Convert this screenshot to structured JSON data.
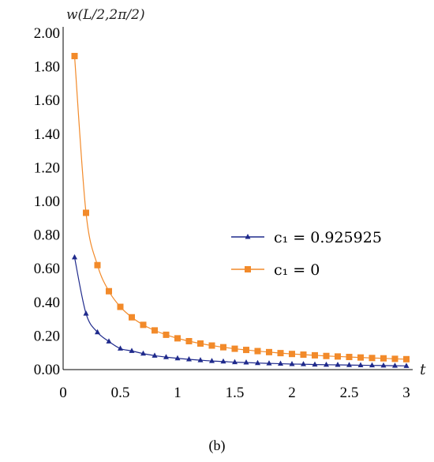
{
  "chart_data": {
    "type": "line",
    "ylabel": "w(L/2,2π/2)",
    "xlabel": "t",
    "xlim": [
      0,
      3
    ],
    "ylim": [
      0,
      2
    ],
    "xticks": [
      "0",
      "0.5",
      "1",
      "1.5",
      "2",
      "2.5",
      "3"
    ],
    "yticks": [
      "0.00",
      "0.20",
      "0.40",
      "0.60",
      "0.80",
      "1.00",
      "1.20",
      "1.40",
      "1.60",
      "1.80",
      "2.00"
    ],
    "grid": false,
    "legend_position": "right-middle",
    "caption": "(b)",
    "series": [
      {
        "name": "c₁ = 0.925925",
        "color": "#1f2a8c",
        "marker": "triangle",
        "x": [
          0.1,
          0.2,
          0.3,
          0.4,
          0.5,
          0.6,
          0.7,
          0.8,
          0.9,
          1.0,
          1.1,
          1.2,
          1.3,
          1.4,
          1.5,
          1.6,
          1.7,
          1.8,
          1.9,
          2.0,
          2.1,
          2.2,
          2.3,
          2.4,
          2.5,
          2.6,
          2.7,
          2.8,
          2.9,
          3.0
        ],
        "values": [
          0.667,
          0.333,
          0.222,
          0.167,
          0.125,
          0.111,
          0.095,
          0.083,
          0.074,
          0.067,
          0.061,
          0.056,
          0.051,
          0.048,
          0.044,
          0.042,
          0.039,
          0.037,
          0.035,
          0.033,
          0.032,
          0.03,
          0.029,
          0.028,
          0.027,
          0.026,
          0.025,
          0.024,
          0.023,
          0.022
        ]
      },
      {
        "name": "c₁ = 0",
        "color": "#f28a2a",
        "marker": "square",
        "x": [
          0.1,
          0.2,
          0.3,
          0.4,
          0.5,
          0.6,
          0.7,
          0.8,
          0.9,
          1.0,
          1.1,
          1.2,
          1.3,
          1.4,
          1.5,
          1.6,
          1.7,
          1.8,
          1.9,
          2.0,
          2.1,
          2.2,
          2.3,
          2.4,
          2.5,
          2.6,
          2.7,
          2.8,
          2.9,
          3.0
        ],
        "values": [
          1.864,
          0.932,
          0.621,
          0.466,
          0.373,
          0.311,
          0.266,
          0.233,
          0.207,
          0.186,
          0.169,
          0.155,
          0.143,
          0.133,
          0.124,
          0.117,
          0.11,
          0.104,
          0.098,
          0.093,
          0.089,
          0.085,
          0.081,
          0.078,
          0.075,
          0.072,
          0.069,
          0.067,
          0.064,
          0.062
        ]
      }
    ]
  }
}
